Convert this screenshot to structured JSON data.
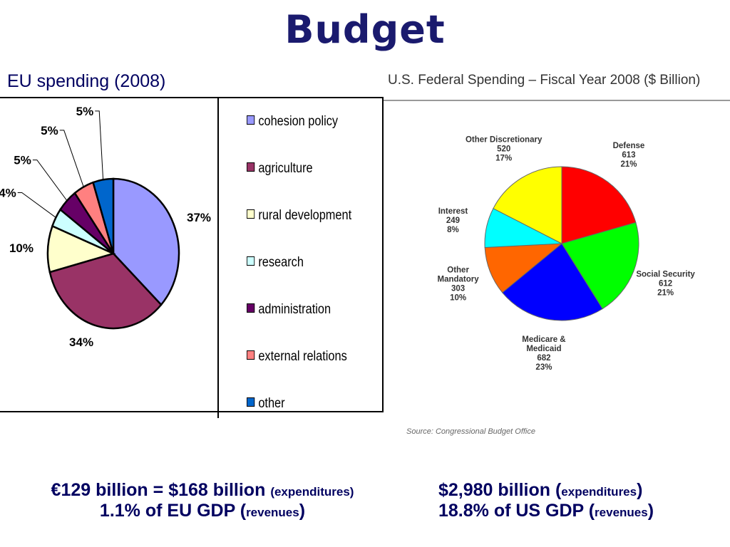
{
  "slide": {
    "title": "Budget"
  },
  "eu_panel": {
    "title": "EU spending (2008)"
  },
  "us_panel": {
    "title": "U.S. Federal Spending – Fiscal Year 2008 ($ Billion)",
    "source": "Source:  Congressional Budget Office"
  },
  "footer": {
    "eu_line1_main": "€129 billion = $168 billion",
    "eu_line1_note": "(expenditures)",
    "eu_line2_main": "1.1% of EU GDP (",
    "eu_line2_note": "revenues",
    "eu_line2_end": ")",
    "us_line1_main": "$2,980 billion (",
    "us_line1_note": "expenditures",
    "us_line1_end": ")",
    "us_line2_main": "18.8% of US GDP (",
    "us_line2_note": "revenues",
    "us_line2_end": ")"
  },
  "chart_data": [
    {
      "type": "pie",
      "title": "EU spending (2008)",
      "legend_placement": "right",
      "slices": [
        {
          "label": "cohesion policy",
          "value": 37,
          "display": "37%",
          "color": "#9999ff"
        },
        {
          "label": "agriculture",
          "value": 34,
          "display": "34%",
          "color": "#993366"
        },
        {
          "label": "rural development",
          "value": 10,
          "display": "10%",
          "color": "#ffffcc"
        },
        {
          "label": "research",
          "value": 4,
          "display": "4%",
          "color": "#ccffff"
        },
        {
          "label": "administration",
          "value": 5,
          "display": "5%",
          "color": "#660066"
        },
        {
          "label": "external relations",
          "value": 5,
          "display": "5%",
          "color": "#ff8080"
        },
        {
          "label": "other",
          "value": 5,
          "display": "5%",
          "color": "#0066cc"
        }
      ]
    },
    {
      "type": "pie",
      "title": "U.S. Federal Spending – Fiscal Year 2008 ($ Billion)",
      "slices": [
        {
          "label": "Defense",
          "label_lines": [
            "Defense"
          ],
          "value": 613,
          "percent": "21%",
          "color": "#ff0000"
        },
        {
          "label": "Social Security",
          "label_lines": [
            "Social Security"
          ],
          "value": 612,
          "percent": "21%",
          "color": "#00ff00"
        },
        {
          "label": "Medicare & Medicaid",
          "label_lines": [
            "Medicare &",
            "Medicaid"
          ],
          "value": 682,
          "percent": "23%",
          "color": "#0000ff"
        },
        {
          "label": "Other Mandatory",
          "label_lines": [
            "Other",
            "Mandatory"
          ],
          "value": 303,
          "percent": "10%",
          "color": "#ff6600"
        },
        {
          "label": "Interest",
          "label_lines": [
            "Interest"
          ],
          "value": 249,
          "percent": "8%",
          "color": "#00ffff"
        },
        {
          "label": "Other Discretionary",
          "label_lines": [
            "Other Discretionary"
          ],
          "value": 520,
          "percent": "17%",
          "color": "#ffff00"
        }
      ]
    }
  ]
}
